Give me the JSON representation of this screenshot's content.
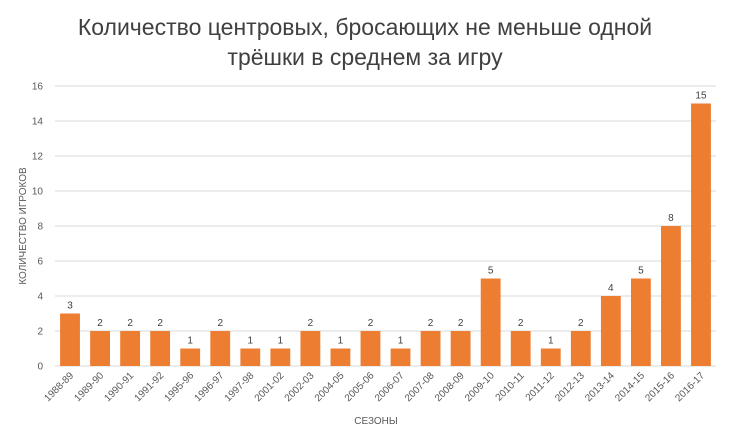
{
  "chart_data": {
    "type": "bar",
    "title_lines": [
      "Количество центровых, бросающих не меньше одной",
      "трёшки в среднем за игру"
    ],
    "xlabel": "СЕЗОНЫ",
    "ylabel": "КОЛИЧЕСТВО ИГРОКОВ",
    "categories": [
      "1988-89",
      "1989-90",
      "1990-91",
      "1991-92",
      "1995-96",
      "1996-97",
      "1997-98",
      "2001-02",
      "2002-03",
      "2004-05",
      "2005-06",
      "2006-07",
      "2007-08",
      "2008-09",
      "2009-10",
      "2010-11",
      "2011-12",
      "2012-13",
      "2013-14",
      "2014-15",
      "2015-16",
      "2016-17"
    ],
    "values": [
      3,
      2,
      2,
      2,
      1,
      2,
      1,
      1,
      2,
      1,
      2,
      1,
      2,
      2,
      5,
      2,
      1,
      2,
      4,
      5,
      8,
      15
    ],
    "ylim": [
      0,
      16
    ],
    "yticks": [
      0,
      2,
      4,
      6,
      8,
      10,
      12,
      14,
      16
    ],
    "grid": true,
    "bar_color": "#ED7D31",
    "grid_color": "#D9D9D9",
    "data_labels": true
  }
}
